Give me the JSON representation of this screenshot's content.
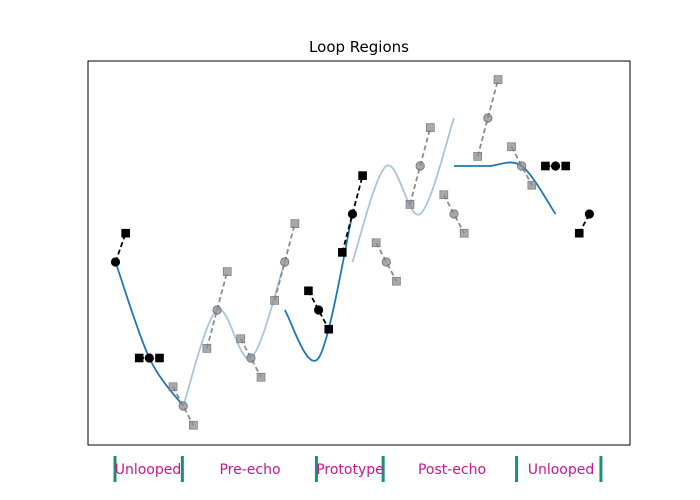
{
  "chart_data": {
    "type": "line",
    "title": "Loop Regions",
    "xlabel": "",
    "ylabel": "",
    "xlim": [
      -0.5,
      10.5
    ],
    "ylim": [
      -1.0,
      2.0
    ],
    "axes_visible": false,
    "grid": false,
    "colors": {
      "curve": "#1f77b4",
      "echo_curve": "#a6c6dd",
      "handle": "#000000",
      "echo_handle": "#8c8c8c",
      "region_marker": "#1a9177",
      "region_label": "#c7158f"
    },
    "curve_segments": [
      {
        "role": "unlooped",
        "x": [
          0,
          1,
          2
        ],
        "y": [
          0.0,
          -0.8,
          -1.2
        ]
      },
      {
        "role": "pre-echo",
        "x": [
          2,
          3,
          4,
          5
        ],
        "y": [
          -1.2,
          -0.4,
          -0.8,
          0.0
        ]
      },
      {
        "role": "prototype",
        "x": [
          5,
          6,
          7
        ],
        "y": [
          -0.4,
          -0.8,
          0.4
        ]
      },
      {
        "role": "post-echo",
        "x": [
          7,
          8,
          9,
          10
        ],
        "y": [
          0.0,
          0.8,
          0.4,
          1.2
        ]
      },
      {
        "role": "unlooped",
        "x": [
          10,
          11,
          12,
          13
        ],
        "y": [
          0.8,
          0.8,
          0.8,
          0.4
        ]
      }
    ],
    "handle_lines": [
      {
        "points": [
          [
            0,
            0.0
          ],
          [
            0.3,
            0.24
          ]
        ],
        "style": "solid"
      },
      {
        "points": [
          [
            0.7,
            -0.8
          ],
          [
            1,
            -0.8
          ],
          [
            1.3,
            -0.8
          ]
        ],
        "style": "solid"
      },
      {
        "points": [
          [
            1.7,
            -1.04
          ],
          [
            2,
            -1.2
          ],
          [
            2.3,
            -1.36
          ]
        ],
        "style": "echo"
      },
      {
        "points": [
          [
            2.7,
            -0.72
          ],
          [
            3,
            -0.4
          ],
          [
            3.3,
            -0.08
          ]
        ],
        "style": "echo"
      },
      {
        "points": [
          [
            3.7,
            -0.64
          ],
          [
            4,
            -0.8
          ],
          [
            4.3,
            -0.96
          ]
        ],
        "style": "echo"
      },
      {
        "points": [
          [
            4.7,
            -0.32
          ],
          [
            5,
            0.0
          ],
          [
            5.3,
            0.32
          ]
        ],
        "style": "echo"
      },
      {
        "points": [
          [
            5.7,
            -0.24
          ],
          [
            6,
            -0.4
          ],
          [
            6.3,
            -0.56
          ]
        ],
        "style": "solid"
      },
      {
        "points": [
          [
            6.7,
            0.08
          ],
          [
            7,
            0.4
          ],
          [
            7.3,
            0.72
          ]
        ],
        "style": "solid"
      },
      {
        "points": [
          [
            7.7,
            0.16
          ],
          [
            8,
            0.0
          ],
          [
            8.3,
            -0.16
          ]
        ],
        "style": "echo"
      },
      {
        "points": [
          [
            8.7,
            0.48
          ],
          [
            9,
            0.8
          ],
          [
            9.3,
            1.12
          ]
        ],
        "style": "echo"
      },
      {
        "points": [
          [
            9.7,
            0.56
          ],
          [
            10,
            0.4
          ],
          [
            10.3,
            0.24
          ]
        ],
        "style": "echo"
      },
      {
        "points": [
          [
            10.7,
            0.88
          ],
          [
            11,
            1.2
          ],
          [
            11.3,
            1.52
          ]
        ],
        "style": "echo"
      },
      {
        "points": [
          [
            11.7,
            0.96
          ],
          [
            12,
            0.8
          ],
          [
            12.3,
            0.64
          ]
        ],
        "style": "echo"
      },
      {
        "points": [
          [
            12.7,
            0.8
          ],
          [
            13,
            0.8
          ],
          [
            13.3,
            0.8
          ]
        ],
        "style": "solid"
      },
      {
        "points": [
          [
            13.7,
            0.24
          ],
          [
            14,
            0.4
          ]
        ],
        "style": "solid"
      }
    ],
    "regions": [
      {
        "label": "Unlooped",
        "x0": 0.0,
        "x1": 1.3
      },
      {
        "label": "Pre-echo",
        "x0": 1.3,
        "x1": 3.55
      },
      {
        "label": "Prototype",
        "x0": 3.55,
        "x1": 4.85
      },
      {
        "label": "Post-echo",
        "x0": 4.85,
        "x1": 7.55
      },
      {
        "label": "Unlooped",
        "x0": 7.55,
        "x1": 8.8
      }
    ]
  }
}
